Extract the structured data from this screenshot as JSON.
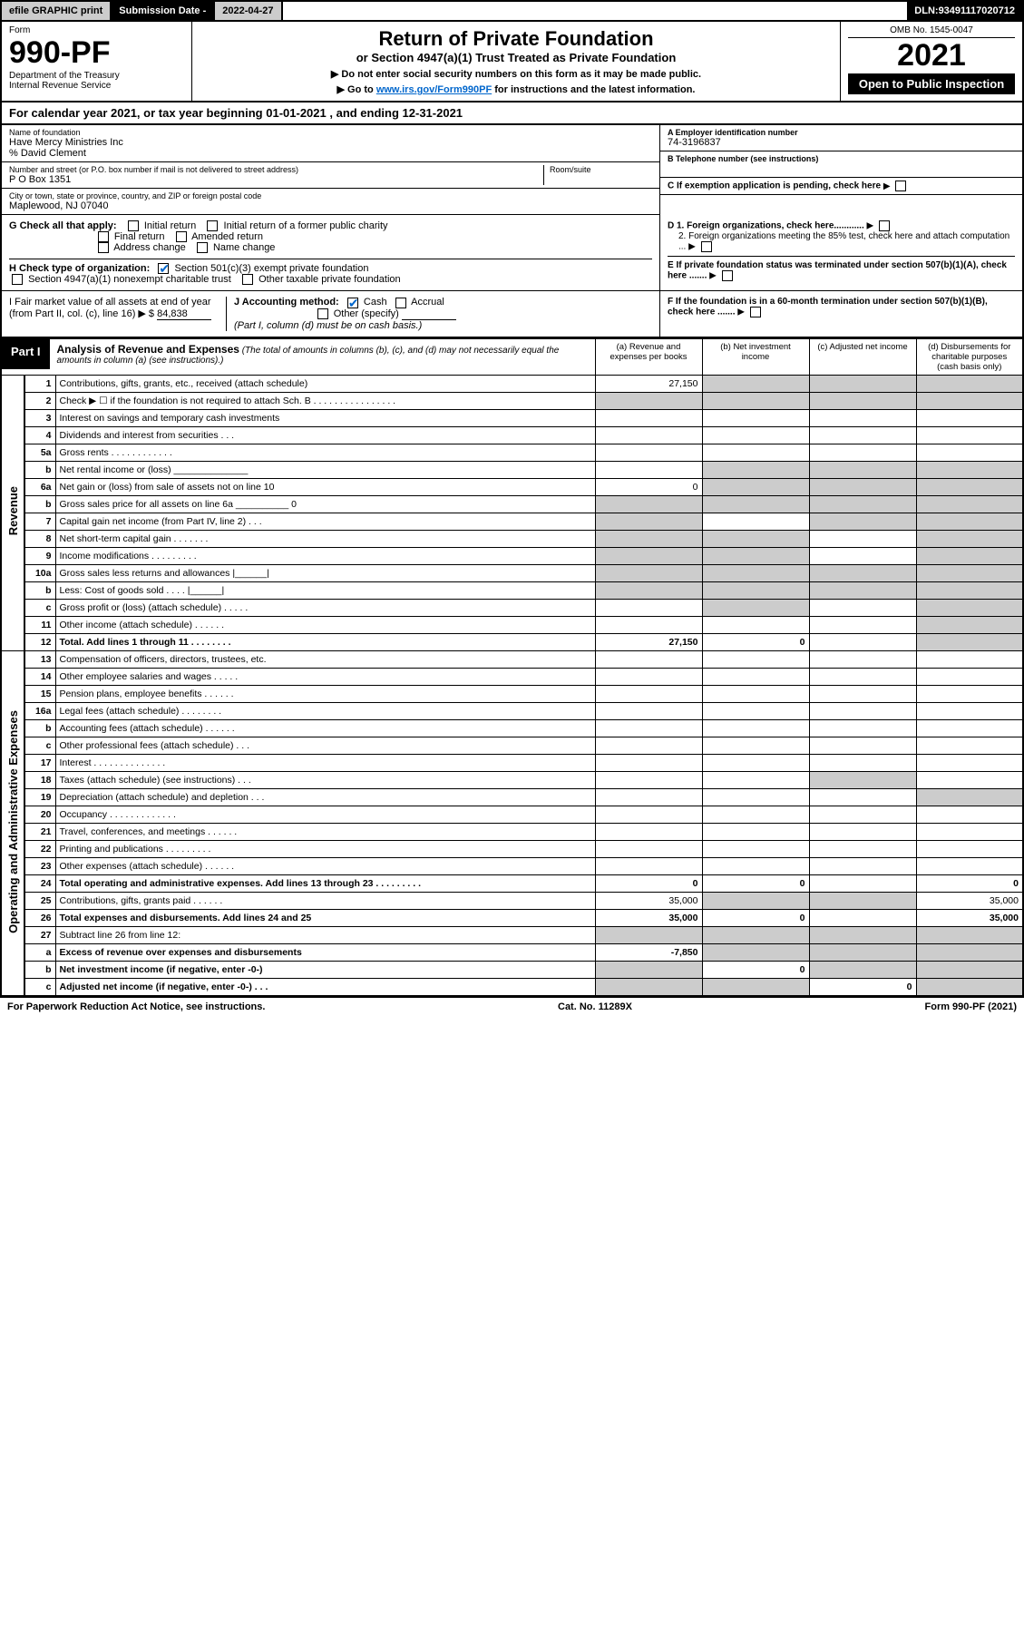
{
  "topbar": {
    "efile": "efile GRAPHIC print",
    "submission_label": "Submission Date - ",
    "submission_date": "2022-04-27",
    "dln_label": "DLN: ",
    "dln": "93491117020712"
  },
  "header": {
    "form_label": "Form",
    "form_number": "990-PF",
    "dept": "Department of the Treasury",
    "irs": "Internal Revenue Service",
    "title": "Return of Private Foundation",
    "subtitle": "or Section 4947(a)(1) Trust Treated as Private Foundation",
    "instr1": "▶ Do not enter social security numbers on this form as it may be made public.",
    "instr2_pre": "▶ Go to ",
    "instr2_link": "www.irs.gov/Form990PF",
    "instr2_post": " for instructions and the latest information.",
    "omb": "OMB No. 1545-0047",
    "year": "2021",
    "open": "Open to Public Inspection"
  },
  "calyear": {
    "text_pre": "For calendar year 2021, or tax year beginning ",
    "begin": "01-01-2021",
    "text_mid": " , and ending ",
    "end": "12-31-2021"
  },
  "info": {
    "name_lbl": "Name of foundation",
    "name": "Have Mercy Ministries Inc",
    "care_of": "% David Clement",
    "addr_lbl": "Number and street (or P.O. box number if mail is not delivered to street address)",
    "addr": "P O Box 1351",
    "room_lbl": "Room/suite",
    "city_lbl": "City or town, state or province, country, and ZIP or foreign postal code",
    "city": "Maplewood, NJ  07040",
    "a_lbl": "A Employer identification number",
    "a_val": "74-3196837",
    "b_lbl": "B Telephone number (see instructions)",
    "c_lbl": "C If exemption application is pending, check here",
    "d1_lbl": "D 1. Foreign organizations, check here............",
    "d2_lbl": "2. Foreign organizations meeting the 85% test, check here and attach computation ...",
    "e_lbl": "E  If private foundation status was terminated under section 507(b)(1)(A), check here .......",
    "f_lbl": "F  If the foundation is in a 60-month termination under section 507(b)(1)(B), check here .......",
    "g_lbl": "G Check all that apply:",
    "g_opts": [
      "Initial return",
      "Initial return of a former public charity",
      "Final return",
      "Amended return",
      "Address change",
      "Name change"
    ],
    "h_lbl": "H Check type of organization:",
    "h_opt1": "Section 501(c)(3) exempt private foundation",
    "h_opt2": "Section 4947(a)(1) nonexempt charitable trust",
    "h_opt3": "Other taxable private foundation",
    "i_lbl": "I Fair market value of all assets at end of year (from Part II, col. (c), line 16) ▶ $",
    "i_val": "84,838",
    "j_lbl": "J Accounting method:",
    "j_opts": [
      "Cash",
      "Accrual",
      "Other (specify)"
    ],
    "j_note": "(Part I, column (d) must be on cash basis.)"
  },
  "part1": {
    "label": "Part I",
    "title": "Analysis of Revenue and Expenses",
    "note": "(The total of amounts in columns (b), (c), and (d) may not necessarily equal the amounts in column (a) (see instructions).)",
    "col_a": "(a) Revenue and expenses per books",
    "col_b": "(b) Net investment income",
    "col_c": "(c) Adjusted net income",
    "col_d": "(d) Disbursements for charitable purposes (cash basis only)"
  },
  "sections": {
    "revenue": "Revenue",
    "expenses": "Operating and Administrative Expenses"
  },
  "rows": [
    {
      "n": "1",
      "d": "Contributions, gifts, grants, etc., received (attach schedule)",
      "a": "27,150",
      "b": "g",
      "c": "g",
      "dcol": "g"
    },
    {
      "n": "2",
      "d": "Check ▶ ☐ if the foundation is not required to attach Sch. B   .  .  .  .  .  .  .  .  .  .  .  .  .  .  .  .",
      "a": "g",
      "b": "g",
      "c": "g",
      "dcol": "g"
    },
    {
      "n": "3",
      "d": "Interest on savings and temporary cash investments"
    },
    {
      "n": "4",
      "d": "Dividends and interest from securities    .   .   ."
    },
    {
      "n": "5a",
      "d": "Gross rents    .   .   .   .   .   .   .   .   .   .   .   ."
    },
    {
      "n": "b",
      "d": "Net rental income or (loss)  ______________",
      "b": "g",
      "c": "g",
      "dcol": "g"
    },
    {
      "n": "6a",
      "d": "Net gain or (loss) from sale of assets not on line 10",
      "a": "0",
      "b": "g",
      "c": "g",
      "dcol": "g"
    },
    {
      "n": "b",
      "d": "Gross sales price for all assets on line 6a __________ 0",
      "a": "g",
      "b": "g",
      "c": "g",
      "dcol": "g"
    },
    {
      "n": "7",
      "d": "Capital gain net income (from Part IV, line 2)   .   .   .",
      "a": "g",
      "c": "g",
      "dcol": "g"
    },
    {
      "n": "8",
      "d": "Net short-term capital gain   .   .   .   .   .   .   .",
      "a": "g",
      "b": "g",
      "dcol": "g"
    },
    {
      "n": "9",
      "d": "Income modifications  .   .   .   .   .   .   .   .   .",
      "a": "g",
      "b": "g",
      "dcol": "g"
    },
    {
      "n": "10a",
      "d": "Gross sales less returns and allowances  |______|",
      "a": "g",
      "b": "g",
      "c": "g",
      "dcol": "g"
    },
    {
      "n": "b",
      "d": "Less: Cost of goods sold    .   .   .   .   |______|",
      "a": "g",
      "b": "g",
      "c": "g",
      "dcol": "g"
    },
    {
      "n": "c",
      "d": "Gross profit or (loss) (attach schedule)    .   .   .   .   .",
      "b": "g",
      "dcol": "g"
    },
    {
      "n": "11",
      "d": "Other income (attach schedule)    .   .   .   .   .   .",
      "dcol": "g"
    },
    {
      "n": "12",
      "d": "Total. Add lines 1 through 11   .   .   .   .   .   .   .   .",
      "a": "27,150",
      "b": "0",
      "dcol": "g",
      "bold": true
    }
  ],
  "exp_rows": [
    {
      "n": "13",
      "d": "Compensation of officers, directors, trustees, etc."
    },
    {
      "n": "14",
      "d": "Other employee salaries and wages   .   .   .   .   ."
    },
    {
      "n": "15",
      "d": "Pension plans, employee benefits  .   .   .   .   .   ."
    },
    {
      "n": "16a",
      "d": "Legal fees (attach schedule)  .   .   .   .   .   .   .   ."
    },
    {
      "n": "b",
      "d": "Accounting fees (attach schedule)  .   .   .   .   .   ."
    },
    {
      "n": "c",
      "d": "Other professional fees (attach schedule)    .   .   ."
    },
    {
      "n": "17",
      "d": "Interest  .   .   .   .   .   .   .   .   .   .   .   .   .   ."
    },
    {
      "n": "18",
      "d": "Taxes (attach schedule) (see instructions)    .   .   .",
      "c": "g"
    },
    {
      "n": "19",
      "d": "Depreciation (attach schedule) and depletion   .   .   .",
      "dcol": "g"
    },
    {
      "n": "20",
      "d": "Occupancy  .   .   .   .   .   .   .   .   .   .   .   .   ."
    },
    {
      "n": "21",
      "d": "Travel, conferences, and meetings  .   .   .   .   .   ."
    },
    {
      "n": "22",
      "d": "Printing and publications  .   .   .   .   .   .   .   .   ."
    },
    {
      "n": "23",
      "d": "Other expenses (attach schedule)  .   .   .   .   .   ."
    },
    {
      "n": "24",
      "d": "Total operating and administrative expenses. Add lines 13 through 23   .   .   .   .   .   .   .   .   .",
      "a": "0",
      "b": "0",
      "dcol": "0",
      "bold": true
    },
    {
      "n": "25",
      "d": "Contributions, gifts, grants paid    .   .   .   .   .   .",
      "a": "35,000",
      "b": "g",
      "c": "g",
      "dcol": "35,000"
    },
    {
      "n": "26",
      "d": "Total expenses and disbursements. Add lines 24 and 25",
      "a": "35,000",
      "b": "0",
      "dcol": "35,000",
      "bold": true
    },
    {
      "n": "27",
      "d": "Subtract line 26 from line 12:",
      "a": "g",
      "b": "g",
      "c": "g",
      "dcol": "g"
    },
    {
      "n": "a",
      "d": "Excess of revenue over expenses and disbursements",
      "a": "-7,850",
      "b": "g",
      "c": "g",
      "dcol": "g",
      "bold": true
    },
    {
      "n": "b",
      "d": "Net investment income (if negative, enter -0-)",
      "a": "g",
      "b": "0",
      "c": "g",
      "dcol": "g",
      "bold": true
    },
    {
      "n": "c",
      "d": "Adjusted net income (if negative, enter -0-)   .   .   .",
      "a": "g",
      "b": "g",
      "c": "0",
      "dcol": "g",
      "bold": true
    }
  ],
  "footer": {
    "left": "For Paperwork Reduction Act Notice, see instructions.",
    "mid": "Cat. No. 11289X",
    "right": "Form 990-PF (2021)"
  }
}
